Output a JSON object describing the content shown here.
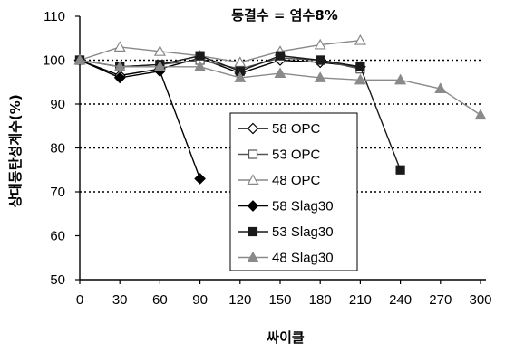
{
  "chart_data": {
    "type": "line",
    "title": "동결수 = 염수8%",
    "xlabel": "싸이클",
    "ylabel": "상대동탄성계수(%)",
    "x": [
      0,
      30,
      60,
      90,
      120,
      150,
      180,
      210,
      240,
      270,
      300
    ],
    "xlim": [
      0,
      300
    ],
    "ylim": [
      50,
      110
    ],
    "xticks": [
      0,
      30,
      60,
      90,
      120,
      150,
      180,
      210,
      240,
      270,
      300
    ],
    "yticks": [
      50,
      60,
      70,
      80,
      90,
      100,
      110
    ],
    "grid": "dotted horizontal at 70, 80, 90, 100",
    "legend_position": "center-right",
    "series": [
      {
        "name": "58 OPC",
        "marker": "diamond-open",
        "color": "#000000",
        "line": "solid",
        "points": [
          [
            0,
            100
          ],
          [
            30,
            96.5
          ],
          [
            60,
            98
          ],
          [
            90,
            100.5
          ],
          [
            120,
            97
          ],
          [
            150,
            100
          ],
          [
            180,
            99.5
          ],
          [
            210,
            98.5
          ]
        ]
      },
      {
        "name": "53 OPC",
        "marker": "square-open",
        "color": "#555555",
        "line": "solid",
        "points": [
          [
            0,
            100
          ],
          [
            30,
            98.5
          ],
          [
            60,
            99
          ],
          [
            90,
            100
          ],
          [
            120,
            98
          ],
          [
            150,
            100.5
          ],
          [
            180,
            100
          ],
          [
            210,
            98
          ]
        ]
      },
      {
        "name": "48 OPC",
        "marker": "triangle-open",
        "color": "#888888",
        "line": "solid",
        "points": [
          [
            0,
            100
          ],
          [
            30,
            103
          ],
          [
            60,
            102
          ],
          [
            90,
            101
          ],
          [
            120,
            99.5
          ],
          [
            150,
            102
          ],
          [
            180,
            103.5
          ],
          [
            210,
            104.5
          ]
        ]
      },
      {
        "name": "58 Slag30",
        "marker": "diamond",
        "color": "#000000",
        "line": "solid",
        "points": [
          [
            0,
            100
          ],
          [
            30,
            96
          ],
          [
            60,
            97.5
          ],
          [
            90,
            73
          ]
        ]
      },
      {
        "name": "53 Slag30",
        "marker": "square",
        "color": "#1a1a1a",
        "line": "solid",
        "points": [
          [
            0,
            100
          ],
          [
            30,
            98.5
          ],
          [
            60,
            99
          ],
          [
            90,
            101
          ],
          [
            120,
            97.5
          ],
          [
            150,
            101
          ],
          [
            180,
            100
          ],
          [
            210,
            98.5
          ],
          [
            240,
            75
          ]
        ]
      },
      {
        "name": "48 Slag30",
        "marker": "triangle",
        "color": "#8a8a8a",
        "line": "solid",
        "points": [
          [
            0,
            100
          ],
          [
            30,
            98.5
          ],
          [
            60,
            98.5
          ],
          [
            90,
            98.5
          ],
          [
            120,
            96
          ],
          [
            150,
            97
          ],
          [
            180,
            96
          ],
          [
            210,
            95.5
          ],
          [
            240,
            95.5
          ],
          [
            270,
            93.5
          ],
          [
            300,
            87.5
          ]
        ]
      }
    ]
  }
}
